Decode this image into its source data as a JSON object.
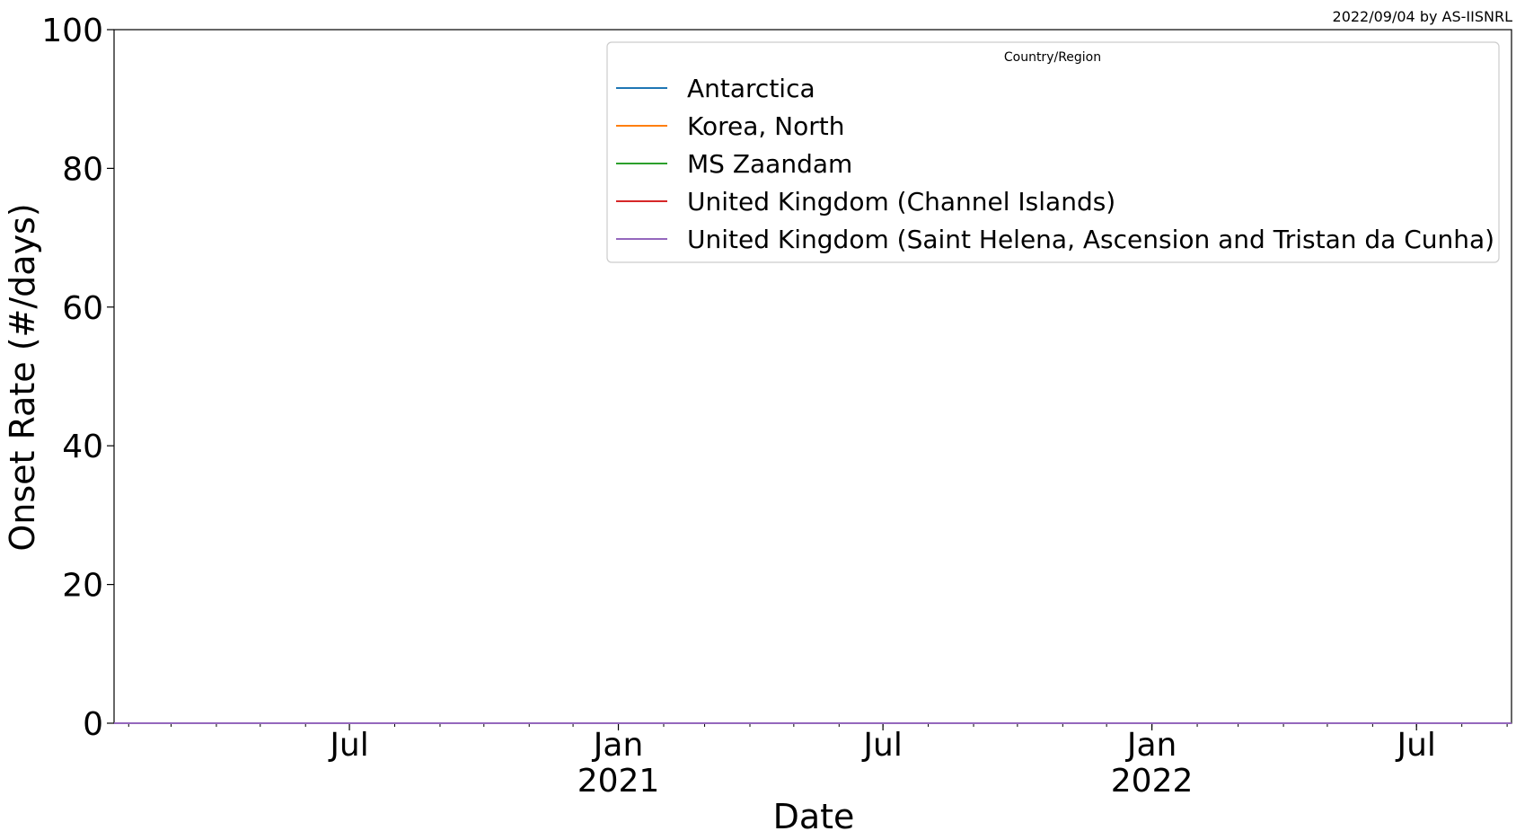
{
  "credit": "2022/09/04 by AS-IISNRL",
  "chart_data": {
    "type": "line",
    "xlabel": "Date",
    "ylabel": "Onset Rate (#/days)",
    "ylim": [
      0,
      100
    ],
    "yticks": [
      0,
      20,
      40,
      60,
      80,
      100
    ],
    "xlim": [
      "2020-01-22",
      "2022-09-04"
    ],
    "xticks": [
      {
        "date": "2020-07-01",
        "label": "Jul",
        "sublabel": ""
      },
      {
        "date": "2021-01-01",
        "label": "Jan",
        "sublabel": "2021"
      },
      {
        "date": "2021-07-01",
        "label": "Jul",
        "sublabel": ""
      },
      {
        "date": "2022-01-01",
        "label": "Jan",
        "sublabel": "2022"
      },
      {
        "date": "2022-07-01",
        "label": "Jul",
        "sublabel": ""
      }
    ],
    "grid": false,
    "legend": {
      "title": "Country/Region",
      "placement": "top-right"
    },
    "series": [
      {
        "name": "Antarctica",
        "color": "#1f77b4",
        "x": [
          "2020-01-22",
          "2022-09-04"
        ],
        "values": [
          0,
          0
        ]
      },
      {
        "name": "Korea, North",
        "color": "#ff7f0e",
        "x": [
          "2020-01-22",
          "2022-09-04"
        ],
        "values": [
          0,
          0
        ]
      },
      {
        "name": "MS Zaandam",
        "color": "#2ca02c",
        "x": [
          "2020-01-22",
          "2022-09-04"
        ],
        "values": [
          0,
          0
        ]
      },
      {
        "name": "United Kingdom (Channel Islands)",
        "color": "#d62728",
        "x": [
          "2020-01-22",
          "2022-09-04"
        ],
        "values": [
          0,
          0
        ]
      },
      {
        "name": "United Kingdom (Saint Helena, Ascension and Tristan da Cunha)",
        "color": "#9467bd",
        "x": [
          "2020-01-22",
          "2022-09-04"
        ],
        "values": [
          0,
          0
        ]
      }
    ]
  }
}
